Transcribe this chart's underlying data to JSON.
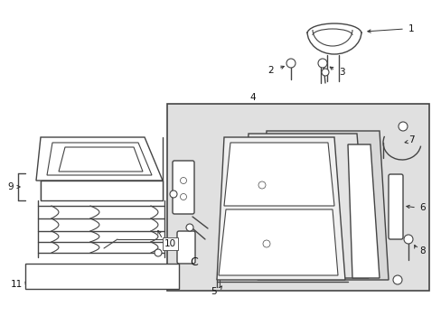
{
  "bg_color": "#ffffff",
  "fig_width": 4.89,
  "fig_height": 3.6,
  "dpi": 100,
  "line_color": "#444444",
  "label_color": "#111111",
  "arrow_color": "#333333",
  "box_fill": "#e0e0e0",
  "seat_fill": "#f0f0f0",
  "seat_fill2": "#e4e4e4",
  "seat_fill3": "#d8d8d8"
}
